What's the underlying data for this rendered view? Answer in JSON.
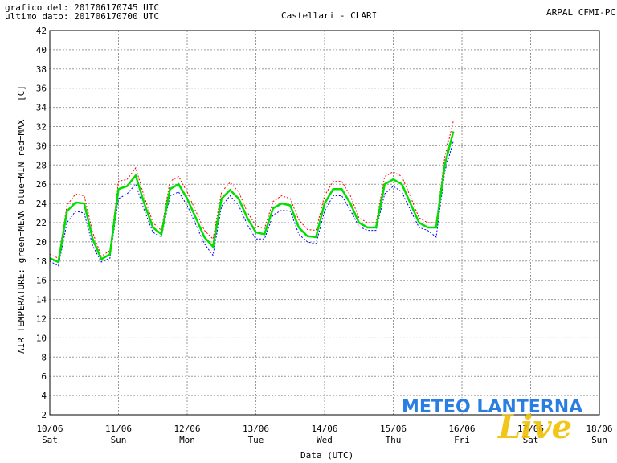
{
  "header": {
    "line1": "grafico del: 201706170745 UTC",
    "line2": "ultimo dato: 201706170700 UTC",
    "station": "Castellari - CLARI",
    "source": "ARPAL CFMI-PC"
  },
  "watermark": {
    "brand": "METEO LANTERNA",
    "sub": "Live"
  },
  "chart_data": {
    "type": "line",
    "title": "Castellari - CLARI",
    "xlabel": "Data (UTC)",
    "ylabel": "AIR TEMPERATURE: green=MEAN  blue=MIN  red=MAX",
    "yunit": "[C]",
    "ylim": [
      2,
      42
    ],
    "yticks": [
      2,
      4,
      6,
      8,
      10,
      12,
      14,
      16,
      18,
      20,
      22,
      24,
      26,
      28,
      30,
      32,
      34,
      36,
      38,
      40,
      42
    ],
    "xlim": [
      "2017-06-10T00:00",
      "2017-06-18T00:00"
    ],
    "xticks": [
      {
        "date": "10/06",
        "day": "Sat"
      },
      {
        "date": "11/06",
        "day": "Sun"
      },
      {
        "date": "12/06",
        "day": "Mon"
      },
      {
        "date": "13/06",
        "day": "Tue"
      },
      {
        "date": "14/06",
        "day": "Wed"
      },
      {
        "date": "15/06",
        "day": "Thu"
      },
      {
        "date": "16/06",
        "day": "Fri"
      },
      {
        "date": "17/06",
        "day": "Sat"
      },
      {
        "date": "18/06",
        "day": "Sun"
      }
    ],
    "grid": true,
    "x": [
      "2017-06-10T00:00",
      "2017-06-10T03:00",
      "2017-06-10T06:00",
      "2017-06-10T09:00",
      "2017-06-10T12:00",
      "2017-06-10T15:00",
      "2017-06-10T18:00",
      "2017-06-10T21:00",
      "2017-06-11T00:00",
      "2017-06-11T03:00",
      "2017-06-11T06:00",
      "2017-06-11T09:00",
      "2017-06-11T12:00",
      "2017-06-11T15:00",
      "2017-06-11T18:00",
      "2017-06-11T21:00",
      "2017-06-12T00:00",
      "2017-06-12T03:00",
      "2017-06-12T06:00",
      "2017-06-12T09:00",
      "2017-06-12T12:00",
      "2017-06-12T15:00",
      "2017-06-12T18:00",
      "2017-06-12T21:00",
      "2017-06-13T00:00",
      "2017-06-13T03:00",
      "2017-06-13T06:00",
      "2017-06-13T09:00",
      "2017-06-13T12:00",
      "2017-06-13T15:00",
      "2017-06-13T18:00",
      "2017-06-13T21:00",
      "2017-06-14T00:00",
      "2017-06-14T03:00",
      "2017-06-14T06:00",
      "2017-06-14T09:00",
      "2017-06-14T12:00",
      "2017-06-14T15:00",
      "2017-06-14T18:00",
      "2017-06-14T21:00",
      "2017-06-15T00:00",
      "2017-06-15T03:00",
      "2017-06-15T06:00",
      "2017-06-15T09:00",
      "2017-06-15T12:00",
      "2017-06-15T15:00",
      "2017-06-15T18:00",
      "2017-06-15T21:00",
      "2017-06-16T00:00",
      "2017-06-16T03:00",
      "2017-06-16T06:00",
      "2017-06-16T09:00",
      "2017-06-16T12:00",
      "2017-06-16T15:00",
      "2017-06-16T18:00",
      "2017-06-16T21:00",
      "2017-06-17T00:00",
      "2017-06-17T03:00",
      "2017-06-17T06:00",
      "2017-06-17T07:00"
    ],
    "series": [
      {
        "name": "MEAN",
        "color": "#00e000",
        "values": [
          18.3,
          17.9,
          23.2,
          24.1,
          24.0,
          20.3,
          18.2,
          18.7,
          25.5,
          25.8,
          26.9,
          24.0,
          21.5,
          20.8,
          25.5,
          26.0,
          24.5,
          22.5,
          20.5,
          19.5,
          24.5,
          25.4,
          24.5,
          22.5,
          21.0,
          20.8,
          23.5,
          24.0,
          23.8,
          21.5,
          20.6,
          20.5,
          24.0,
          25.5,
          25.5,
          24.0,
          22.0,
          21.5,
          21.5,
          26.0,
          26.5,
          26.0,
          24.0,
          22.0,
          21.5,
          21.5,
          28.0,
          31.5,
          null,
          null,
          null,
          null,
          null,
          null,
          null,
          null,
          null,
          null,
          null,
          null
        ]
      },
      {
        "name": "MIN",
        "color": "#0000ff",
        "values": [
          18.0,
          17.5,
          22.0,
          23.2,
          23.0,
          19.6,
          17.9,
          18.3,
          24.5,
          25.0,
          26.0,
          23.3,
          21.0,
          20.5,
          24.8,
          25.2,
          23.8,
          21.8,
          19.8,
          18.6,
          23.7,
          24.8,
          23.8,
          21.8,
          20.3,
          20.3,
          22.8,
          23.3,
          23.2,
          20.8,
          20.0,
          19.8,
          23.2,
          24.8,
          24.8,
          23.3,
          21.6,
          21.2,
          21.2,
          25.0,
          25.8,
          25.2,
          23.3,
          21.5,
          21.2,
          20.5,
          27.3,
          30.5,
          null,
          null,
          null,
          null,
          null,
          null,
          null,
          null,
          null,
          null,
          null,
          null
        ]
      },
      {
        "name": "MAX",
        "color": "#ff0000",
        "values": [
          18.7,
          18.3,
          23.8,
          25.0,
          24.8,
          21.0,
          18.5,
          19.1,
          26.3,
          26.5,
          27.7,
          24.7,
          22.0,
          21.2,
          26.3,
          26.8,
          25.2,
          23.2,
          21.2,
          20.3,
          25.2,
          26.2,
          25.2,
          23.1,
          21.7,
          21.4,
          24.2,
          24.8,
          24.5,
          22.3,
          21.3,
          21.2,
          24.8,
          26.3,
          26.3,
          24.8,
          22.5,
          22.0,
          22.0,
          26.8,
          27.3,
          26.8,
          24.7,
          22.5,
          22.0,
          22.0,
          28.8,
          32.6,
          null,
          null,
          null,
          null,
          null,
          null,
          null,
          null,
          null,
          null,
          null,
          null
        ]
      }
    ]
  }
}
